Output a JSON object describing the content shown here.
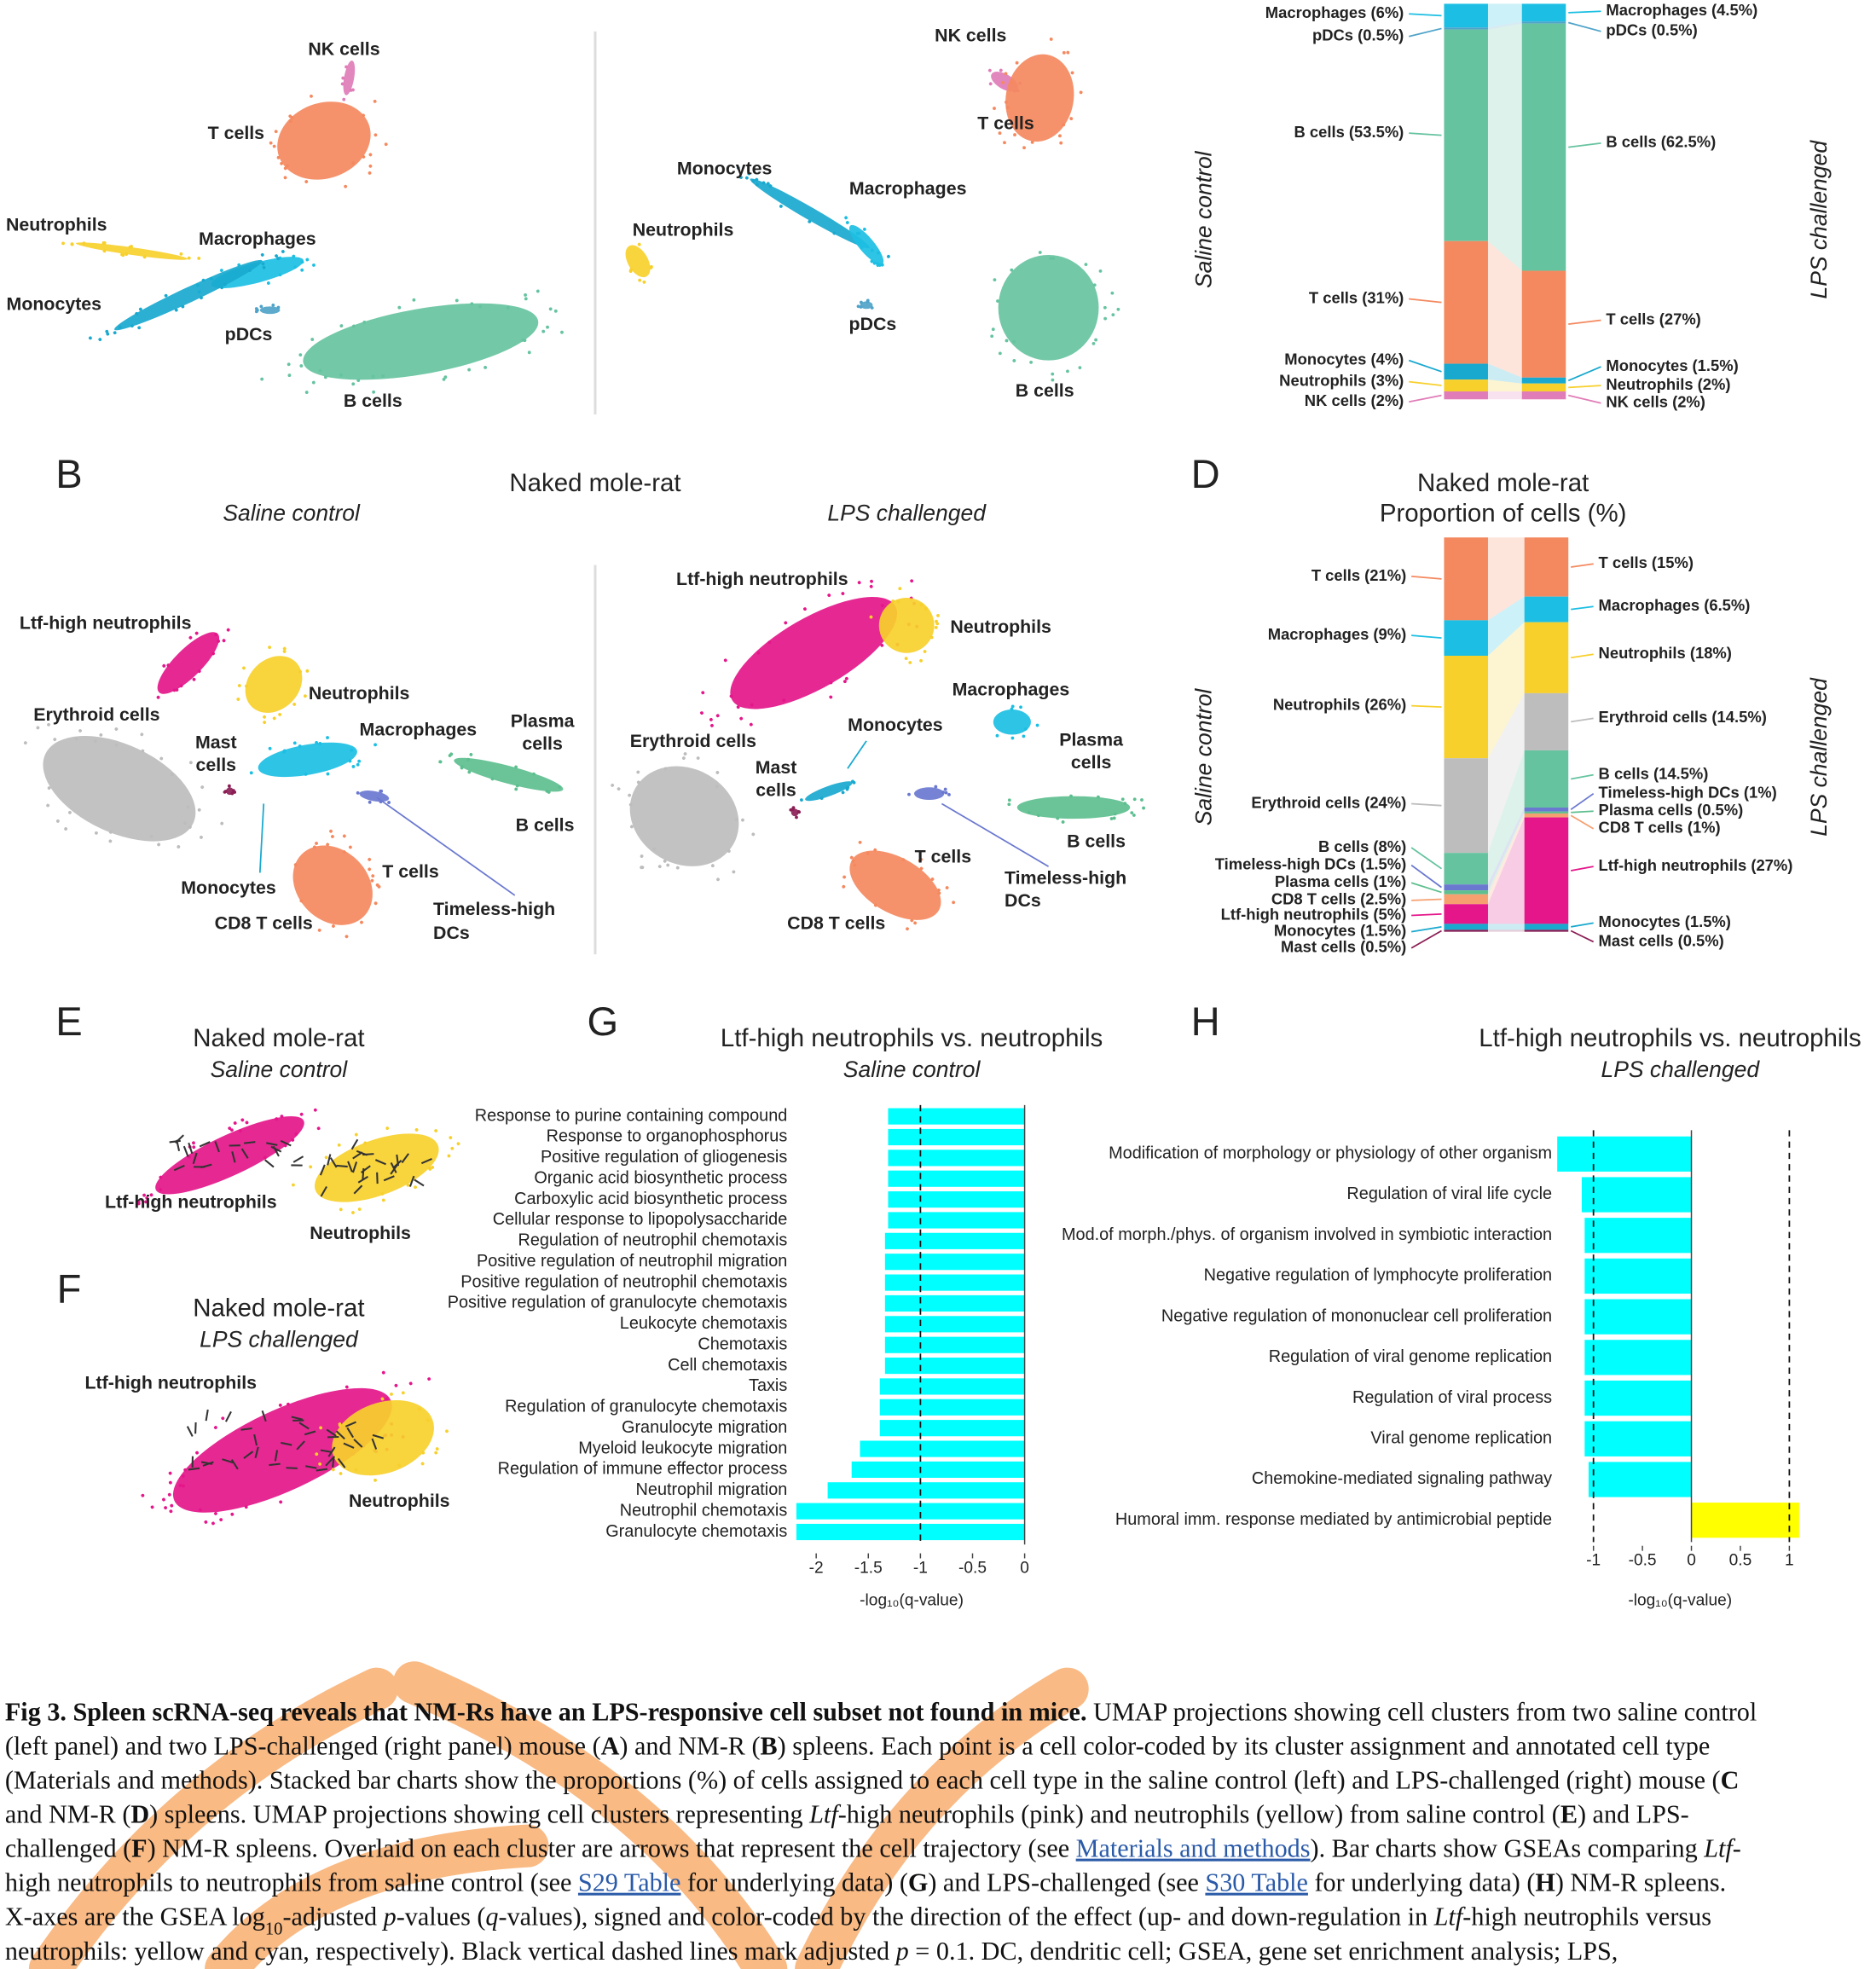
{
  "panel_a": {
    "labels": [
      "NK cells",
      "T cells",
      "Neutrophils",
      "Macrophages",
      "Monocytes",
      "pDCs",
      "B cells",
      "NK cells",
      "T cells",
      "Monocytes",
      "Macrophages",
      "Neutrophils",
      "pDCs",
      "B cells"
    ]
  },
  "panel_b": {
    "letter": "B",
    "title": "Naked mole-rat",
    "left_subtitle": "Saline control",
    "right_subtitle": "LPS challenged",
    "labels": [
      "Ltf-high neutrophils",
      "Neutrophils",
      "Erythroid cells",
      "Mast",
      "cells",
      "Macrophages",
      "Plasma",
      "cells",
      "B cells",
      "Monocytes",
      "CD8 T cells",
      "T cells",
      "Timeless-high",
      "DCs",
      "Ltf-high neutrophils",
      "Neutrophils",
      "Macrophages",
      "Monocytes",
      "Erythroid cells",
      "Mast",
      "cells",
      "Plasma",
      "cells",
      "B cells",
      "T cells",
      "CD8 T cells",
      "Timeless-high",
      "DCs"
    ]
  },
  "panel_e": {
    "letter": "E",
    "title": "Naked mole-rat",
    "subtitle": "Saline control",
    "labels": [
      "Ltf-high neutrophils",
      "Neutrophils"
    ]
  },
  "panel_f": {
    "letter": "F",
    "title": "Naked mole-rat",
    "subtitle": "LPS challenged",
    "labels": [
      "Ltf-high neutrophils",
      "Neutrophils"
    ]
  },
  "chart_data": [
    {
      "type": "stacked_bar",
      "categories": [
        "Saline control",
        "LPS challenged"
      ],
      "series": [
        {
          "color": "#1cbfe3",
          "values": [
            6,
            4.5
          ],
          "value_labels": [
            "Macrophages (6%)",
            "Macrophages (4.5%)"
          ]
        },
        {
          "color": "#4fa3c9",
          "values": [
            0.5,
            0.5
          ],
          "value_labels": [
            "pDCs (0.5%)",
            "pDCs (0.5%)"
          ]
        },
        {
          "color": "#66c3a0",
          "values": [
            53.5,
            62.5
          ],
          "value_labels": [
            "B cells (53.5%)",
            "B cells (62.5%)"
          ]
        },
        {
          "color": "#f4895f",
          "values": [
            31,
            27
          ],
          "value_labels": [
            "T cells (31%)",
            "T cells (27%)"
          ]
        },
        {
          "color": "#19a9cf",
          "values": [
            4,
            1.5
          ],
          "value_labels": [
            "Monocytes (4%)",
            "Monocytes (1.5%)"
          ]
        },
        {
          "color": "#f7d02c",
          "values": [
            3,
            2
          ],
          "value_labels": [
            "Neutrophils (3%)",
            "Neutrophils (2%)"
          ]
        },
        {
          "color": "#e07db8",
          "values": [
            2,
            2
          ],
          "value_labels": [
            "NK cells (2%)",
            "NK cells (2%)"
          ]
        }
      ]
    },
    {
      "type": "stacked_bar",
      "letter": "D",
      "title": "Naked mole-rat",
      "subtitle": "Proportion of cells (%)",
      "categories": [
        "Saline control",
        "LPS challenged"
      ],
      "series": [
        {
          "color": "#f4895f",
          "values": [
            21,
            15
          ],
          "value_labels": [
            "T cells (21%)",
            "T cells (15%)"
          ]
        },
        {
          "color": "#1cbfe3",
          "values": [
            9,
            6.5
          ],
          "value_labels": [
            "Macrophages (9%)",
            "Macrophages (6.5%)"
          ]
        },
        {
          "color": "#f7d02c",
          "values": [
            26,
            18
          ],
          "value_labels": [
            "Neutrophils (26%)",
            "Neutrophils (18%)"
          ]
        },
        {
          "color": "#bdbdbd",
          "values": [
            24,
            14.5
          ],
          "value_labels": [
            "Erythroid cells (24%)",
            "Erythroid cells (14.5%)"
          ]
        },
        {
          "color": "#66c3a0",
          "values": [
            8,
            14.5
          ],
          "value_labels": [
            "B cells (8%)",
            "B cells (14.5%)"
          ]
        },
        {
          "color": "#6a78d0",
          "values": [
            1.5,
            1
          ],
          "value_labels": [
            "Timeless-high DCs (1.5%)",
            "Timeless-high DCs (1%)"
          ]
        },
        {
          "color": "#5dbf8f",
          "values": [
            1,
            0.5
          ],
          "value_labels": [
            "Plasma cells (1%)",
            "Plasma cells (0.5%)"
          ]
        },
        {
          "color": "#f6a070",
          "values": [
            2.5,
            1
          ],
          "value_labels": [
            "CD8 T cells (2.5%)",
            "CD8 T cells (1%)"
          ]
        },
        {
          "color": "#e4168a",
          "values": [
            5,
            27
          ],
          "value_labels": [
            "Ltf-high neutrophils (5%)",
            "Ltf-high neutrophils (27%)"
          ]
        },
        {
          "color": "#19a9cf",
          "values": [
            1.5,
            1.5
          ],
          "value_labels": [
            "Monocytes (1.5%)",
            "Monocytes (1.5%)"
          ]
        },
        {
          "color": "#8b1f55",
          "values": [
            0.5,
            0.5
          ],
          "value_labels": [
            "Mast cells (0.5%)",
            "Mast cells (0.5%)"
          ]
        }
      ]
    },
    {
      "type": "hbar",
      "letter": "G",
      "title": "Ltf-high neutrophils vs. neutrophils",
      "subtitle": "Saline control",
      "categories": [
        "Response to purine containing compound",
        "Response to organophosphorus",
        "Positive regulation of gliogenesis",
        "Organic acid biosynthetic process",
        "Carboxylic acid biosynthetic process",
        "Cellular response to lipopolysaccharide",
        "Regulation of neutrophil chemotaxis",
        "Positive regulation of neutrophil migration",
        "Positive regulation of neutrophil chemotaxis",
        "Positive regulation of granulocyte chemotaxis",
        "Leukocyte chemotaxis",
        "Chemotaxis",
        "Cell chemotaxis",
        "Taxis",
        "Regulation of granulocyte chemotaxis",
        "Granulocyte migration",
        "Myeloid leukocyte migration",
        "Regulation of immune effector process",
        "Neutrophil migration",
        "Neutrophil chemotaxis",
        "Granulocyte chemotaxis"
      ],
      "values": [
        -1.31,
        -1.31,
        -1.31,
        -1.31,
        -1.31,
        -1.31,
        -1.34,
        -1.34,
        -1.34,
        -1.34,
        -1.34,
        -1.34,
        -1.34,
        -1.39,
        -1.39,
        -1.39,
        -1.58,
        -1.66,
        -1.89,
        -2.19,
        -2.19
      ],
      "positive_color": "#ffff00",
      "negative_color": "#00ffff",
      "xlim": [
        -2.2,
        0
      ],
      "xticks": [
        -2,
        -1.5,
        -1,
        -0.5,
        0
      ],
      "threshold_lines": [
        -1
      ],
      "xlabel": "-log₁₀(q-value)"
    },
    {
      "type": "hbar",
      "letter": "H",
      "title": "Ltf-high neutrophils vs. neutrophils",
      "subtitle": "LPS challenged",
      "categories": [
        "Modification of morphology or physiology of other organism",
        "Regulation of viral life cycle",
        "Mod.of morph./phys. of organism involved in symbiotic interaction",
        "Negative regulation of lymphocyte proliferation",
        "Negative regulation of mononuclear cell proliferation",
        "Regulation of viral genome replication",
        "Regulation of viral process",
        "Viral genome replication",
        "Chemokine-mediated signaling pathway",
        "Humoral imm. response mediated by antimicrobial peptide"
      ],
      "values": [
        -1.37,
        -1.12,
        -1.09,
        -1.09,
        -1.09,
        -1.09,
        -1.09,
        -1.09,
        -1.05,
        1.1
      ],
      "positive_color": "#ffff00",
      "negative_color": "#00ffff",
      "xlim": [
        -1.4,
        1.15
      ],
      "xticks": [
        -1,
        -0.5,
        0,
        0.5,
        1
      ],
      "threshold_lines": [
        -1,
        1
      ],
      "xlabel": "-log₁₀(q-value)"
    }
  ],
  "caption": {
    "lines": [
      [
        {
          "text": "Fig 3. Spleen scRNA-seq reveals that NM-Rs have an LPS-responsive cell subset not found in mice.",
          "style": "bold"
        },
        {
          "text": " UMAP projections showing cell clusters from two saline control"
        }
      ],
      [
        {
          "text": "(left panel) and two LPS-challenged (right panel) mouse ("
        },
        {
          "text": "A",
          "style": "bold"
        },
        {
          "text": ") and NM-R ("
        },
        {
          "text": "B",
          "style": "bold"
        },
        {
          "text": ") spleens. Each point is a cell color-coded by its cluster assignment and annotated cell type"
        }
      ],
      [
        {
          "text": "(Materials and methods). Stacked bar charts show the proportions (%) of cells assigned to each cell type in the saline control (left) and LPS-challenged (right) mouse ("
        },
        {
          "text": "C",
          "style": "bold"
        }
      ],
      [
        {
          "text": "and NM-R ("
        },
        {
          "text": "D",
          "style": "bold"
        },
        {
          "text": ") spleens. UMAP projections showing cell clusters representing "
        },
        {
          "text": "Ltf",
          "style": "italic"
        },
        {
          "text": "-high neutrophils (pink) and neutrophils (yellow) from saline control ("
        },
        {
          "text": "E",
          "style": "bold"
        },
        {
          "text": ") and LPS-"
        }
      ],
      [
        {
          "text": "challenged ("
        },
        {
          "text": "F",
          "style": "bold"
        },
        {
          "text": ") NM-R spleens. Overlaid on each cluster are arrows that represent the cell trajectory (see "
        },
        {
          "text": "Materials and methods",
          "style": "link"
        },
        {
          "text": "). Bar charts show GSEAs comparing "
        },
        {
          "text": "Ltf-",
          "style": "italic"
        }
      ],
      [
        {
          "text": "high neutrophils to neutrophils from saline control (see "
        },
        {
          "text": "S29 Table",
          "style": "link"
        },
        {
          "text": " for underlying data) ("
        },
        {
          "text": "G",
          "style": "bold"
        },
        {
          "text": ") and LPS-challenged (see "
        },
        {
          "text": "S30 Table",
          "style": "link"
        },
        {
          "text": " for underlying data) ("
        },
        {
          "text": "H",
          "style": "bold"
        },
        {
          "text": ") NM-R spleens."
        }
      ],
      [
        {
          "text": "X-axes are the GSEA log"
        },
        {
          "text": "10",
          "style": "sub"
        },
        {
          "text": "-adjusted "
        },
        {
          "text": "p",
          "style": "italic"
        },
        {
          "text": "-values ("
        },
        {
          "text": "q",
          "style": "italic"
        },
        {
          "text": "-values), signed and color-coded by the direction of the effect (up- and down-regulation in "
        },
        {
          "text": "Ltf",
          "style": "italic"
        },
        {
          "text": "-high neutrophils versus"
        }
      ],
      [
        {
          "text": "neutrophils: yellow and cyan, respectively). Black vertical dashed lines mark adjusted "
        },
        {
          "text": "p",
          "style": "italic"
        },
        {
          "text": " = 0.1. DC, dendritic cell; GSEA, gene set enrichment analysis; LPS,"
        }
      ]
    ]
  }
}
